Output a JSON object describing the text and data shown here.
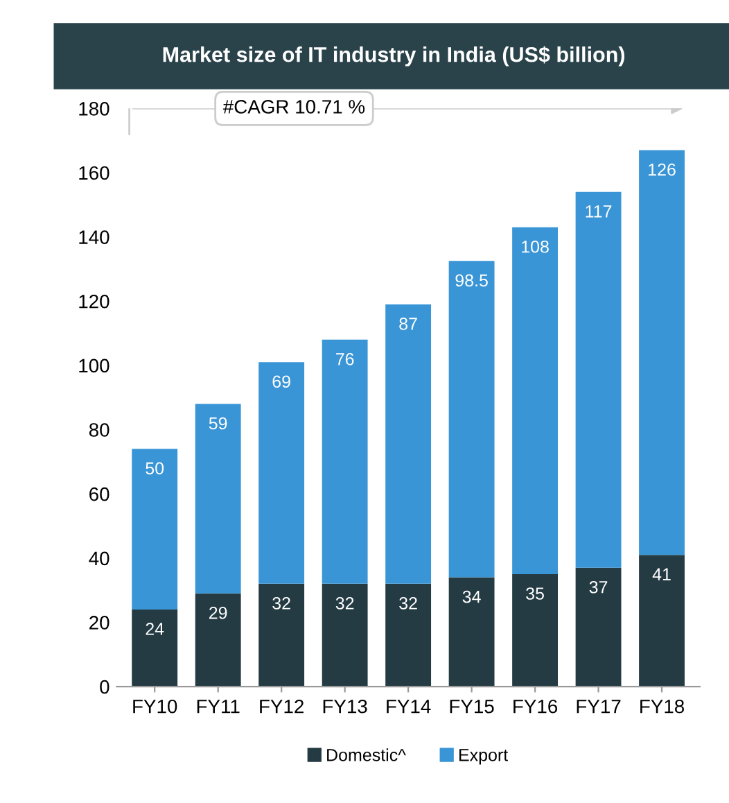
{
  "chart_data": {
    "type": "bar",
    "title": "Market size of IT industry in India (US$ billion)",
    "stacked": true,
    "categories": [
      "FY10",
      "FY11",
      "FY12",
      "FY13",
      "FY14",
      "FY15",
      "FY16",
      "FY17",
      "FY18"
    ],
    "series": [
      {
        "name": "Domestic^",
        "color": "#243b43",
        "values": [
          24,
          29,
          32,
          32,
          32,
          34,
          35,
          37,
          41
        ]
      },
      {
        "name": "Export",
        "color": "#3a95d6",
        "values": [
          50,
          59,
          69,
          76,
          87,
          98.5,
          108,
          117,
          126
        ]
      }
    ],
    "data_labels": true,
    "ylim": [
      0,
      180
    ],
    "yticks": [
      0,
      20,
      40,
      60,
      80,
      100,
      120,
      140,
      160,
      180
    ],
    "annotations": [
      "#CAGR 10.71 %"
    ],
    "grid": false,
    "legend": "bottom"
  }
}
